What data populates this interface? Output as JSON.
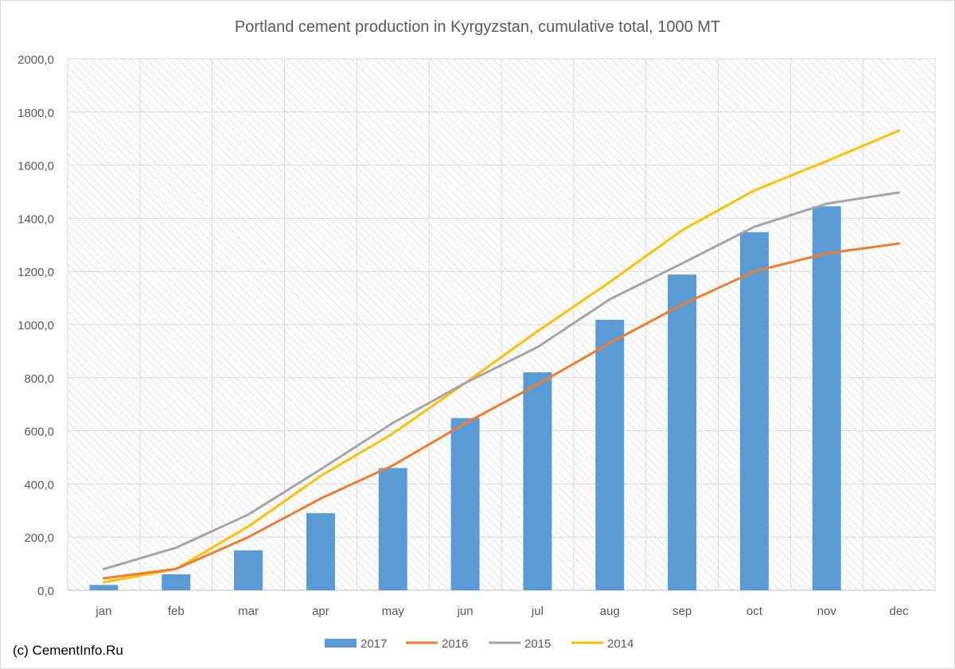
{
  "credit": "(c) CementInfo.Ru",
  "chart_data": {
    "type": "bar+line",
    "title": "Portland cement production in Kyrgyzstan, cumulative total, 1000 MT",
    "xlabel": "",
    "ylabel": "",
    "categories": [
      "jan",
      "feb",
      "mar",
      "apr",
      "may",
      "jun",
      "jul",
      "aug",
      "sep",
      "oct",
      "nov",
      "dec"
    ],
    "ylim": [
      0,
      2000
    ],
    "yticks": [
      "0,0",
      "200,0",
      "400,0",
      "600,0",
      "800,0",
      "1000,0",
      "1200,0",
      "1400,0",
      "1600,0",
      "1800,0",
      "2000,0"
    ],
    "grid": true,
    "legend_position": "bottom",
    "series": [
      {
        "name": "2017",
        "kind": "bar",
        "color": "#5b9bd5",
        "values": [
          20,
          60,
          150,
          290,
          460,
          648,
          820,
          1018,
          1188,
          1348,
          1445,
          null
        ]
      },
      {
        "name": "2016",
        "kind": "line",
        "color": "#ed7d31",
        "values": [
          45,
          80,
          200,
          345,
          470,
          628,
          775,
          930,
          1075,
          1200,
          1268,
          1305
        ]
      },
      {
        "name": "2015",
        "kind": "line",
        "color": "#a5a5a5",
        "values": [
          80,
          160,
          285,
          455,
          630,
          780,
          915,
          1095,
          1230,
          1368,
          1455,
          1497
        ]
      },
      {
        "name": "2014",
        "kind": "line",
        "color": "#ffc000",
        "values": [
          30,
          80,
          240,
          430,
          590,
          780,
          975,
          1160,
          1355,
          1505,
          1615,
          1730
        ]
      }
    ]
  }
}
